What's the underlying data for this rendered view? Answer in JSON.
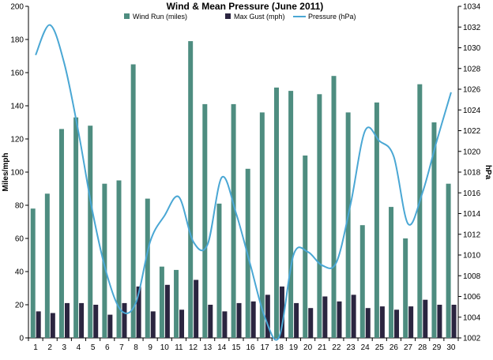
{
  "chart_data": {
    "type": "bar",
    "title": "Wind & Mean Pressure (June 2011)",
    "ylabel": "Miles/mph",
    "y2label": "hPa",
    "ylim": [
      0,
      200
    ],
    "y2lim": [
      1002,
      1034
    ],
    "yticks": [
      "0",
      "20",
      "40",
      "60",
      "80",
      "100",
      "120",
      "140",
      "160",
      "180",
      "200"
    ],
    "y2ticks": [
      "1002",
      "1004",
      "1006",
      "1008",
      "1010",
      "1012",
      "1014",
      "1016",
      "1018",
      "1020",
      "1022",
      "1024",
      "1026",
      "1028",
      "1030",
      "1032",
      "1034"
    ],
    "categories": [
      "1",
      "2",
      "3",
      "4",
      "5",
      "6",
      "7",
      "8",
      "9",
      "10",
      "11",
      "12",
      "13",
      "14",
      "15",
      "16",
      "17",
      "18",
      "19",
      "20",
      "21",
      "22",
      "23",
      "24",
      "25",
      "26",
      "27",
      "28",
      "29",
      "30"
    ],
    "legend_position": "top",
    "series": [
      {
        "name": "Wind Run (miles)",
        "type": "bar",
        "color": "#4e8d80",
        "values": [
          78,
          87,
          126,
          133,
          128,
          93,
          95,
          165,
          84,
          43,
          41,
          179,
          141,
          81,
          141,
          102,
          136,
          151,
          149,
          110,
          147,
          158,
          136,
          68,
          142,
          79,
          60,
          153,
          130,
          93
        ]
      },
      {
        "name": "Max Gust (mph)",
        "type": "bar",
        "color": "#2b2540",
        "values": [
          16,
          15,
          21,
          21,
          20,
          14,
          21,
          31,
          16,
          32,
          17,
          35,
          20,
          16,
          21,
          22,
          26,
          31,
          21,
          18,
          25,
          22,
          26,
          18,
          19,
          17,
          19,
          23,
          20,
          20
        ]
      },
      {
        "name": "Pressure (hPa)",
        "type": "line",
        "axis": "right",
        "color": "#4aa7d4",
        "values": [
          1029.3,
          1032.2,
          1028.5,
          1021.8,
          1014.0,
          1008.0,
          1004.6,
          1005.4,
          1011.3,
          1013.8,
          1015.6,
          1011.3,
          1011.0,
          1017.5,
          1014.0,
          1009.0,
          1004.0,
          1002.1,
          1010.0,
          1010.3,
          1009.0,
          1009.3,
          1015.0,
          1022.0,
          1021.0,
          1019.5,
          1013.0,
          1016.0,
          1021.0,
          1025.7
        ]
      }
    ]
  }
}
